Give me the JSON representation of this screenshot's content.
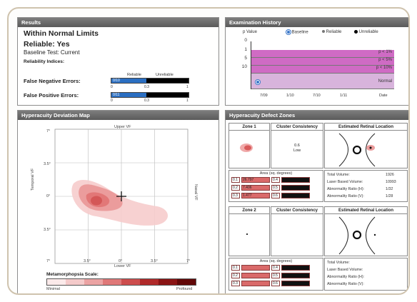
{
  "results": {
    "header": "Results",
    "status": "Within Normal Limits",
    "reliable": "Reliable: Yes",
    "baseline": "Baseline Test: Current",
    "reliability_title": "Reliability Indices:",
    "col_reliable": "Reliable",
    "col_unreliable": "Unreliable",
    "false_negative": "False Negative Errors:",
    "false_positive": "False Positive Errors:",
    "fn_value": "0/10",
    "fp_value": "0/11",
    "fn_fraction": 0.0,
    "fp_fraction": 0.0,
    "tick_0": "0",
    "tick_a": "0.3",
    "tick_b": "1"
  },
  "history": {
    "header": "Examination History",
    "y_axis_title": "p Value",
    "legend_baseline": "Baseline",
    "legend_reliable": "Reliable",
    "legend_unreliable": "Unreliable",
    "y_ticks": [
      "0",
      "1",
      "5",
      "10"
    ],
    "bands": [
      "p < 1%",
      "p < 5%",
      "p < 10%",
      "Normal"
    ],
    "x_ticks": [
      "7/09",
      "1/10",
      "7/10",
      "1/11",
      "Date"
    ],
    "band_color": "#cf6bc4",
    "normal_color": "#d8b4dc"
  },
  "devmap": {
    "header": "Hyperacuity Deviation Map",
    "upper": "Upper VF",
    "lower": "Lower VF",
    "temporal": "Temporal VF",
    "nasal": "Nasal VF",
    "tick_7": "7°",
    "tick_35": "3.5°",
    "tick_0": "0°",
    "scale_title": "Metamorphopsia Scale:",
    "scale_min": "Minimal",
    "scale_max": "Profound",
    "scale_colors": [
      "#fbeaea",
      "#f4caca",
      "#eba3a3",
      "#df7878",
      "#cd4d4d",
      "#b02a2a",
      "#8a1414",
      "#620808"
    ]
  },
  "zones": {
    "header": "Hyperacuity Defect Zones",
    "zone1": "Zone 1",
    "zone2": "Zone 2",
    "cluster": "Cluster Consistency",
    "est_loc": "Estimated Retinal Location",
    "z1_consistency_value": "0.6",
    "z1_consistency_word": "Low",
    "area_title": "Area (sq. degrees)",
    "z1_areas": [
      {
        "label": "0.1",
        "val": "26.797",
        "label2": "0.4"
      },
      {
        "label": "0.2",
        "val": "7.406",
        "label2": "0.5"
      },
      {
        "label": "0.3",
        "val": "1.477",
        "label2": "0.6"
      }
    ],
    "z2_areas": [
      {
        "label": "0.1",
        "val": "",
        "label2": "0.4"
      },
      {
        "label": "0.2",
        "val": "",
        "label2": "0.5"
      },
      {
        "label": "0.3",
        "val": "",
        "label2": "0.6"
      }
    ],
    "total_volume": "Total Volume:",
    "laser_volume": "Laser Based Volume:",
    "abn_ratio_h": "Abnormality Ratio (H):",
    "abn_ratio_v": "Abnormality Ratio (V):",
    "z1_vals": [
      "1926",
      "10993",
      "1/32",
      "1/28"
    ]
  }
}
